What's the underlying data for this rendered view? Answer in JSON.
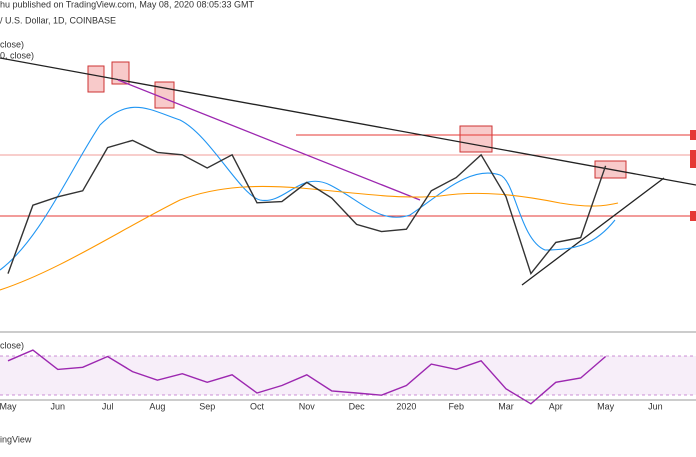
{
  "header": {
    "published": "hu published on TradingView.com, May 08, 2020 08:05:33 GMT",
    "symbol": "/ U.S. Dollar, 1D, COINBASE",
    "ma1": "close)",
    "ma2": "0, close)",
    "rsi": "close)"
  },
  "footer": "ingView",
  "chart_data": [
    {
      "type": "line",
      "name": "price",
      "categories": [
        "May",
        null,
        "Jun",
        null,
        "Jul",
        null,
        "Aug",
        null,
        "Sep",
        null,
        "Oct",
        null,
        "Nov",
        null,
        "Dec",
        null,
        "2020",
        null,
        "Feb",
        null,
        "Mar",
        null,
        "Apr",
        null,
        "May",
        null,
        "Jun"
      ],
      "values": [
        5350,
        8200,
        8550,
        8800,
        10600,
        10900,
        10400,
        10300,
        9750,
        10300,
        8300,
        8350,
        9150,
        8500,
        7400,
        7100,
        7200,
        8800,
        9350,
        10300,
        8550,
        5350,
        6650,
        6850,
        9843.23,
        null,
        null
      ],
      "color": "#333333",
      "ylim": [
        3000,
        15500
      ]
    },
    {
      "type": "line",
      "name": "rsi",
      "values": [
        68,
        78,
        60,
        62,
        72,
        58,
        50,
        56,
        48,
        55,
        38,
        45,
        55,
        40,
        38,
        36,
        45,
        65,
        60,
        68,
        42,
        28,
        48,
        52,
        72,
        null,
        null
      ],
      "color": "#9c27b0",
      "ylim": [
        25,
        93
      ]
    }
  ]
}
